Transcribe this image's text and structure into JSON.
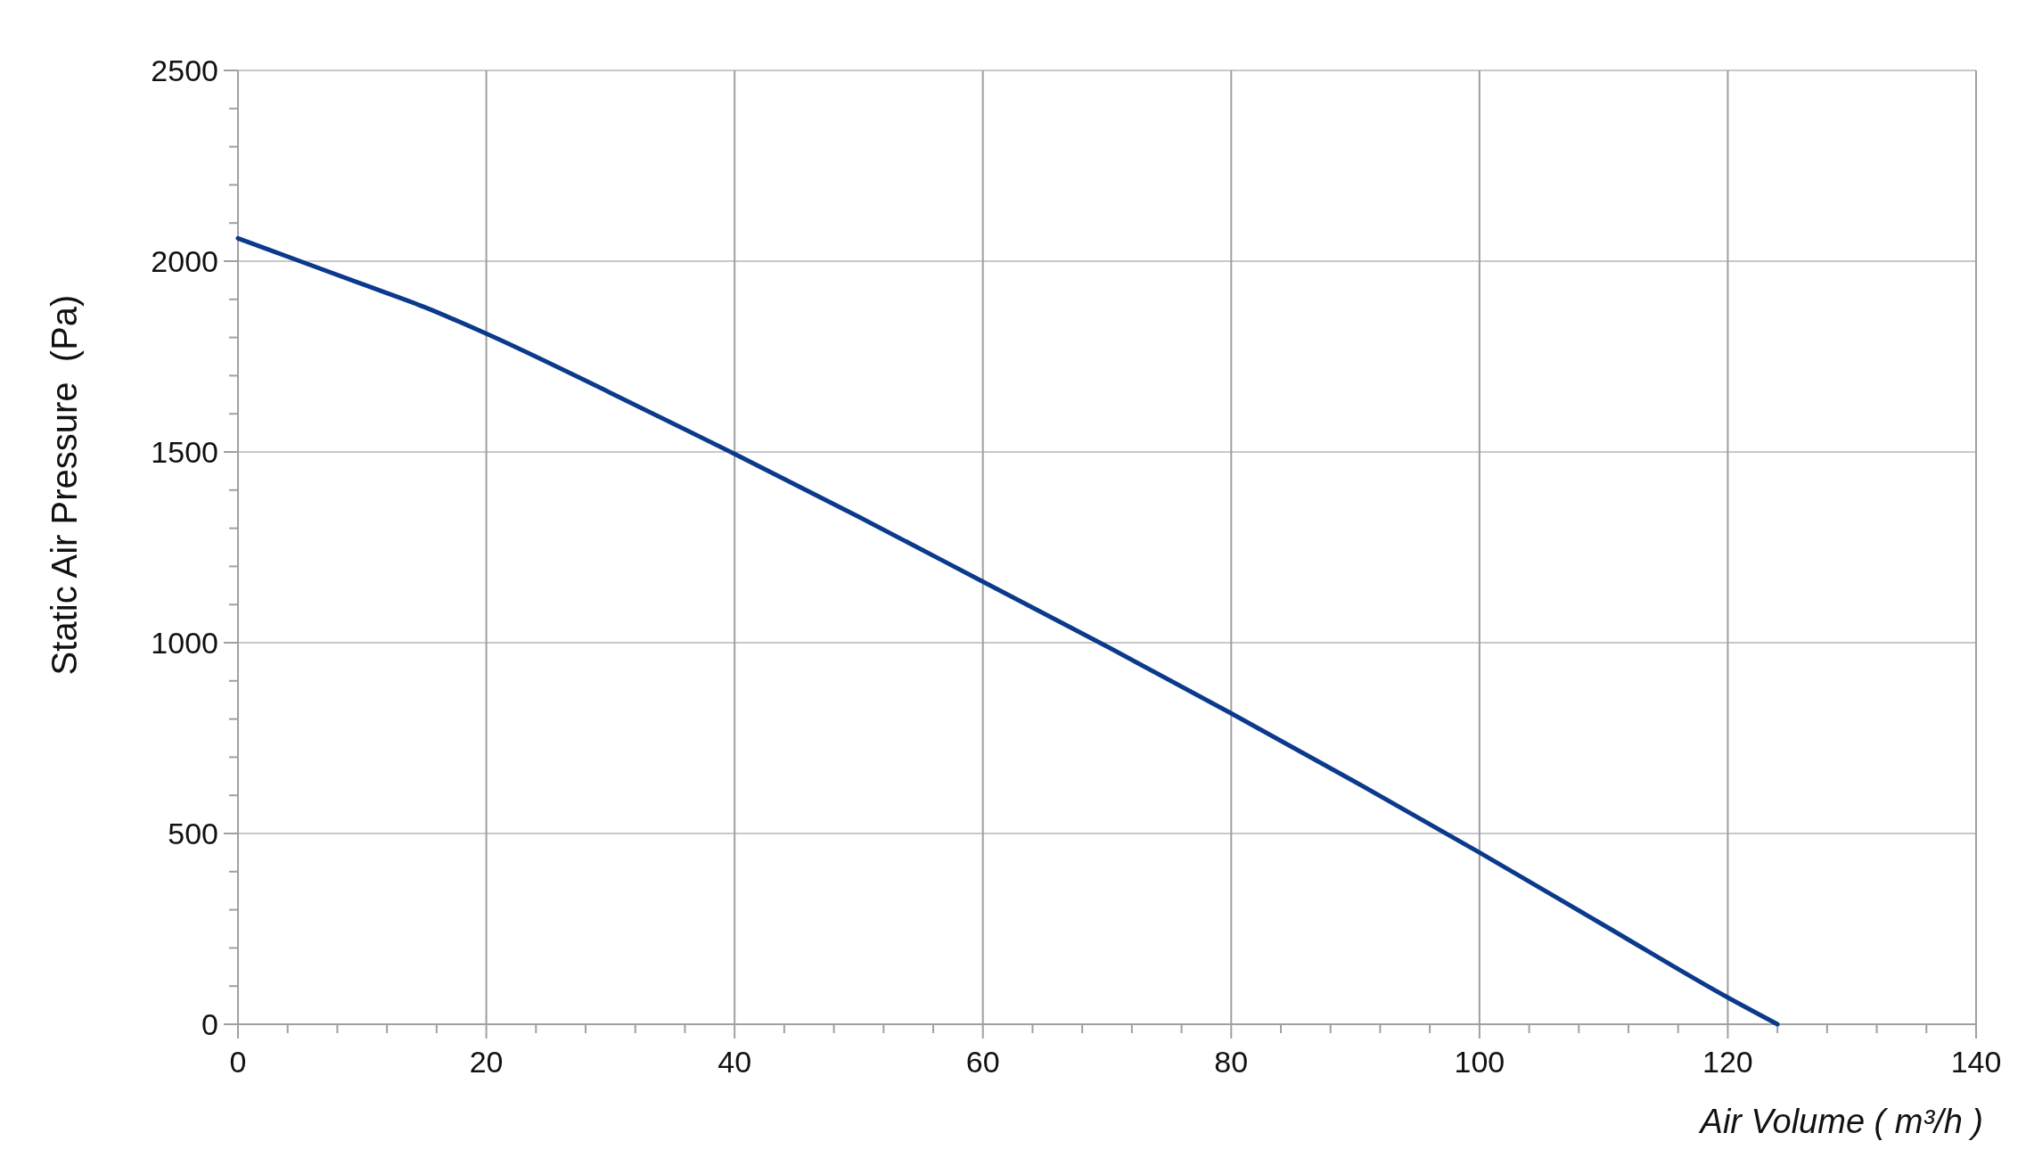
{
  "chart_data": {
    "type": "line",
    "ylabel": "Static Air Pressure  (Pa)",
    "xlabel": "Air Volume ( m³/h )",
    "x": [
      0,
      5,
      10,
      15,
      20,
      30,
      40,
      50,
      60,
      70,
      80,
      90,
      100,
      110,
      120,
      124
    ],
    "series": [
      {
        "color": "#0b3a8c",
        "values": [
          2060,
          2000,
          1940,
          1880,
          1810,
          1655,
          1495,
          1330,
          1160,
          990,
          815,
          635,
          450,
          260,
          70,
          0
        ]
      }
    ],
    "xlim": [
      0,
      140
    ],
    "ylim": [
      0,
      2500
    ],
    "xticks": [
      0,
      {
        "value": 4,
        "label": null
      },
      {
        "value": 8,
        "label": null
      },
      {
        "value": 12,
        "label": null
      },
      {
        "value": 16,
        "label": null
      },
      20,
      {
        "value": 24,
        "label": null
      },
      {
        "value": 28,
        "label": null
      },
      {
        "value": 32,
        "label": null
      },
      {
        "value": 36,
        "label": null
      },
      40,
      {
        "value": 44,
        "label": null
      },
      {
        "value": 48,
        "label": null
      },
      {
        "value": 52,
        "label": null
      },
      {
        "value": 56,
        "label": null
      },
      60,
      {
        "value": 64,
        "label": null
      },
      {
        "value": 68,
        "label": null
      },
      {
        "value": 72,
        "label": null
      },
      {
        "value": 76,
        "label": null
      },
      80,
      {
        "value": 84,
        "label": null
      },
      {
        "value": 88,
        "label": null
      },
      {
        "value": 92,
        "label": null
      },
      {
        "value": 96,
        "label": null
      },
      100,
      {
        "value": 104,
        "label": null
      },
      {
        "value": 108,
        "label": null
      },
      {
        "value": 112,
        "label": null
      },
      {
        "value": 116,
        "label": null
      },
      120,
      {
        "value": 124,
        "label": null
      },
      {
        "value": 128,
        "label": null
      },
      {
        "value": 132,
        "label": null
      },
      {
        "value": 136,
        "label": null
      },
      140
    ],
    "yticks": [
      0,
      {
        "value": 100,
        "label": null
      },
      {
        "value": 200,
        "label": null
      },
      {
        "value": 300,
        "label": null
      },
      {
        "value": 400,
        "label": null
      },
      500,
      {
        "value": 600,
        "label": null
      },
      {
        "value": 700,
        "label": null
      },
      {
        "value": 800,
        "label": null
      },
      {
        "value": 900,
        "label": null
      },
      1000,
      {
        "value": 1100,
        "label": null
      },
      {
        "value": 1200,
        "label": null
      },
      {
        "value": 1300,
        "label": null
      },
      {
        "value": 1400,
        "label": null
      },
      1500,
      {
        "value": 1600,
        "label": null
      },
      {
        "value": 1700,
        "label": null
      },
      {
        "value": 1800,
        "label": null
      },
      {
        "value": 1900,
        "label": null
      },
      2000,
      {
        "value": 2100,
        "label": null
      },
      {
        "value": 2200,
        "label": null
      },
      {
        "value": 2300,
        "label": null
      },
      {
        "value": 2400,
        "label": null
      },
      2500
    ],
    "grid": true,
    "marker": "none",
    "line_style": "solid"
  }
}
